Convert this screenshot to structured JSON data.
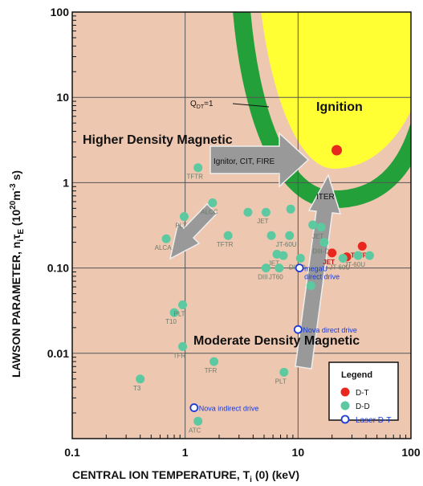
{
  "chart_data": {
    "type": "scatter",
    "xscale": "log",
    "yscale": "log",
    "xlim": [
      0.1,
      100
    ],
    "ylim": [
      0.001,
      100
    ],
    "xlabel": "CENTRAL ION TEMPERATURE, T",
    "xlabel_sub": "i",
    "xlabel_tail": " (0) (keV)",
    "ylabel": "LAWSON PARAMETER, n",
    "ylabel_sub1": "i",
    "ylabel_mid": "τ",
    "ylabel_sub2": "E",
    "ylabel_tail": " (10",
    "ylabel_exp": "20",
    "ylabel_unit": "m",
    "ylabel_exp2": "-3",
    "ylabel_end": " s)",
    "x_ticks": [
      {
        "v": 0.1,
        "label": "0.1"
      },
      {
        "v": 1,
        "label": "1"
      },
      {
        "v": 10,
        "label": "10"
      },
      {
        "v": 100,
        "label": "100"
      }
    ],
    "y_ticks": [
      {
        "v": 0.01,
        "label": "0.01"
      },
      {
        "v": 0.1,
        "label": "0.10"
      },
      {
        "v": 1,
        "label": "1"
      },
      {
        "v": 10,
        "label": "10"
      },
      {
        "v": 100,
        "label": "100"
      }
    ],
    "grid": true,
    "legend": {
      "title": "Legend",
      "placement": "bottom-right",
      "entries": [
        {
          "label": "D-T",
          "marker": "filled",
          "color": "#e8281e"
        },
        {
          "label": "D-D",
          "marker": "filled",
          "color": "#5cc9a0"
        },
        {
          "label": "Laser D-T",
          "marker": "open",
          "color": "#1a3ad6"
        }
      ]
    },
    "regions": [
      {
        "label": "Ignition",
        "color": "#ffff33"
      },
      {
        "label": "Q",
        "label_sub": "DT",
        "label_tail": "=1",
        "color": "#23a03a"
      }
    ],
    "arrows": [
      {
        "label": "Higher Density Magnetic"
      },
      {
        "label": "Moderate Density Magnetic"
      }
    ],
    "series": [
      {
        "name": "D-T",
        "color": "#e8281e",
        "marker": "filled",
        "points": [
          {
            "x": 20,
            "y": 0.15,
            "label": "JET"
          },
          {
            "x": 27,
            "y": 0.135,
            "label": ""
          },
          {
            "x": 37,
            "y": 0.18,
            "label": "TFTR"
          },
          {
            "x": 22,
            "y": 2.4,
            "label": ""
          }
        ]
      },
      {
        "name": "D-D",
        "color": "#5cc9a0",
        "marker": "filled",
        "points": [
          {
            "x": 0.4,
            "y": 0.005,
            "label": "T3"
          },
          {
            "x": 0.8,
            "y": 0.03,
            "label": "T10"
          },
          {
            "x": 0.95,
            "y": 0.037,
            "label": "PLT"
          },
          {
            "x": 0.95,
            "y": 0.012,
            "label": "TFR"
          },
          {
            "x": 1.8,
            "y": 0.008,
            "label": "TFR"
          },
          {
            "x": 1.3,
            "y": 0.0016,
            "label": "ATC"
          },
          {
            "x": 0.68,
            "y": 0.22,
            "label": "ALCA"
          },
          {
            "x": 0.98,
            "y": 0.4,
            "label": "PLT"
          },
          {
            "x": 1.75,
            "y": 0.58,
            "label": "ALCC"
          },
          {
            "x": 1.3,
            "y": 1.5,
            "label": "TFTR"
          },
          {
            "x": 2.4,
            "y": 0.24,
            "label": "TFTR"
          },
          {
            "x": 3.6,
            "y": 0.45,
            "label": ""
          },
          {
            "x": 5.2,
            "y": 0.45,
            "label": "JET"
          },
          {
            "x": 5.8,
            "y": 0.24,
            "label": ""
          },
          {
            "x": 6.5,
            "y": 0.145,
            "label": "JET"
          },
          {
            "x": 7.4,
            "y": 0.14,
            "label": ""
          },
          {
            "x": 5.2,
            "y": 0.1,
            "label": "DIII"
          },
          {
            "x": 6.8,
            "y": 0.1,
            "label": "JT60"
          },
          {
            "x": 8.6,
            "y": 0.49,
            "label": ""
          },
          {
            "x": 8.4,
            "y": 0.24,
            "label": "JT-60U"
          },
          {
            "x": 10.5,
            "y": 0.13,
            "label": "DIII-D"
          },
          {
            "x": 13.5,
            "y": 0.32,
            "label": ""
          },
          {
            "x": 16,
            "y": 0.3,
            "label": "JET"
          },
          {
            "x": 17,
            "y": 0.2,
            "label": "DIII-D"
          },
          {
            "x": 25,
            "y": 0.13,
            "label": "JT-60U"
          },
          {
            "x": 34,
            "y": 0.14,
            "label": "JT-60U"
          },
          {
            "x": 43,
            "y": 0.14,
            "label": ""
          },
          {
            "x": 13,
            "y": 0.062,
            "label": ""
          },
          {
            "x": 7.5,
            "y": 0.006,
            "label": "PLT"
          }
        ]
      },
      {
        "name": "Laser D-T",
        "color": "#1a3ad6",
        "marker": "open",
        "points": [
          {
            "x": 10.3,
            "y": 0.1,
            "label": "megaU direct drive"
          },
          {
            "x": 10,
            "y": 0.019,
            "label": "Nova direct drive"
          },
          {
            "x": 1.2,
            "y": 0.0023,
            "label": "Nova indirect drive"
          }
        ]
      }
    ],
    "arrow_texts": [
      {
        "text": "Ignitor, CIT, FIRE"
      },
      {
        "text": "ITER"
      }
    ]
  }
}
